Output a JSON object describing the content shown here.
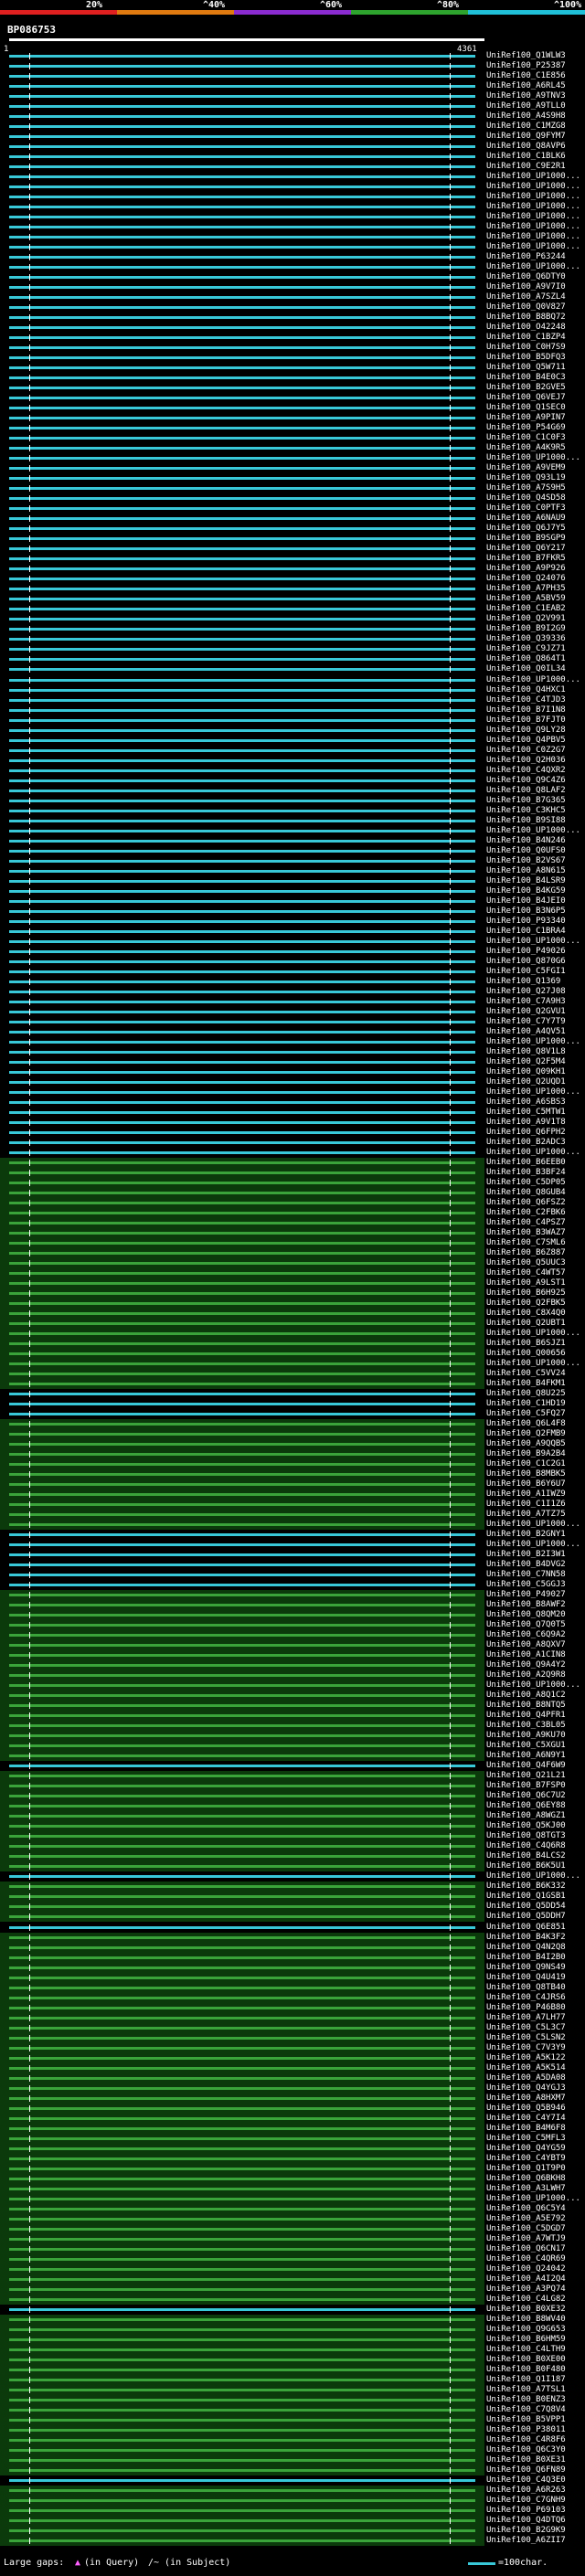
{
  "header": {
    "scale_labels": [
      "20%",
      "^40%",
      "^60%",
      "^80%",
      "^100%"
    ],
    "scale_colors": [
      "#e02020",
      "#e07a10",
      "#8a2bd0",
      "#2ea32e",
      "#20c0d8"
    ],
    "query_title": "BP086753",
    "ruler_start": "1",
    "ruler_end": "4361"
  },
  "footer": {
    "gaps_label": "Large gaps: ",
    "in_query": "(in Query)",
    "in_subject": "/~ (in Subject)",
    "legend_text": "=100char."
  },
  "colors": {
    "cyan": "#38c8d8",
    "green": "#3aa43a",
    "dark_green": "#0b3a0b",
    "magenta": "#d040c0",
    "white": "#ffffff"
  },
  "hits": [
    {
      "label": "UniRef100_Q1WLW3",
      "color": "cyan"
    },
    {
      "label": "UniRef100_P25387",
      "color": "cyan"
    },
    {
      "label": "UniRef100_C1E856",
      "color": "cyan"
    },
    {
      "label": "UniRef100_A6RL45",
      "color": "cyan"
    },
    {
      "label": "UniRef100_A9TNV3",
      "color": "cyan"
    },
    {
      "label": "UniRef100_A9TLL0",
      "color": "cyan"
    },
    {
      "label": "UniRef100_A4S9H8",
      "color": "cyan"
    },
    {
      "label": "UniRef100_C1MZG8",
      "color": "cyan"
    },
    {
      "label": "UniRef100_Q9FYM7",
      "color": "cyan"
    },
    {
      "label": "UniRef100_Q8AVP6",
      "color": "cyan"
    },
    {
      "label": "UniRef100_C1BLK6",
      "color": "cyan"
    },
    {
      "label": "UniRef100_C9E2R1",
      "color": "cyan"
    },
    {
      "label": "UniRef100_UP1000...",
      "color": "cyan"
    },
    {
      "label": "UniRef100_UP1000...",
      "color": "cyan"
    },
    {
      "label": "UniRef100_UP1000...",
      "color": "cyan"
    },
    {
      "label": "UniRef100_UP1000...",
      "color": "cyan"
    },
    {
      "label": "UniRef100_UP1000...",
      "color": "cyan"
    },
    {
      "label": "UniRef100_UP1000...",
      "color": "cyan"
    },
    {
      "label": "UniRef100_UP1000...",
      "color": "cyan"
    },
    {
      "label": "UniRef100_UP1000...",
      "color": "cyan"
    },
    {
      "label": "UniRef100_P63244",
      "color": "cyan"
    },
    {
      "label": "UniRef100_UP1000...",
      "color": "cyan"
    },
    {
      "label": "UniRef100_Q6DTY0",
      "color": "cyan"
    },
    {
      "label": "UniRef100_A9V7I0",
      "color": "cyan"
    },
    {
      "label": "UniRef100_A7SZL4",
      "color": "cyan"
    },
    {
      "label": "UniRef100_Q0V827",
      "color": "cyan"
    },
    {
      "label": "UniRef100_B8BQ72",
      "color": "cyan"
    },
    {
      "label": "UniRef100_O42248",
      "color": "cyan"
    },
    {
      "label": "UniRef100_C1BZP4",
      "color": "cyan"
    },
    {
      "label": "UniRef100_C0H7S9",
      "color": "cyan"
    },
    {
      "label": "UniRef100_B5DFQ3",
      "color": "cyan"
    },
    {
      "label": "UniRef100_Q5W711",
      "color": "cyan"
    },
    {
      "label": "UniRef100_B4E0C3",
      "color": "cyan"
    },
    {
      "label": "UniRef100_B2GVE5",
      "color": "cyan"
    },
    {
      "label": "UniRef100_Q6VEJ7",
      "color": "cyan"
    },
    {
      "label": "UniRef100_Q1SEC0",
      "color": "cyan"
    },
    {
      "label": "UniRef100_A9PIN7",
      "color": "cyan"
    },
    {
      "label": "UniRef100_P54G69",
      "color": "cyan"
    },
    {
      "label": "UniRef100_C1C0F3",
      "color": "cyan"
    },
    {
      "label": "UniRef100_A4K9R5",
      "color": "cyan"
    },
    {
      "label": "UniRef100_UP1000...",
      "color": "cyan"
    },
    {
      "label": "UniRef100_A9VEM9",
      "color": "cyan"
    },
    {
      "label": "UniRef100_Q93L19",
      "color": "cyan"
    },
    {
      "label": "UniRef100_A7S9H5",
      "color": "cyan"
    },
    {
      "label": "UniRef100_Q4SD58",
      "color": "cyan"
    },
    {
      "label": "UniRef100_C0PTF3",
      "color": "cyan"
    },
    {
      "label": "UniRef100_A6NAU9",
      "color": "cyan"
    },
    {
      "label": "UniRef100_Q6J7Y5",
      "color": "cyan"
    },
    {
      "label": "UniRef100_B9SGP9",
      "color": "cyan"
    },
    {
      "label": "UniRef100_Q6Y217",
      "color": "cyan"
    },
    {
      "label": "UniRef100_B7FKR5",
      "color": "cyan"
    },
    {
      "label": "UniRef100_A9P926",
      "color": "cyan"
    },
    {
      "label": "UniRef100_Q24076",
      "color": "cyan"
    },
    {
      "label": "UniRef100_A7PH35",
      "color": "cyan"
    },
    {
      "label": "UniRef100_A5BV59",
      "color": "cyan"
    },
    {
      "label": "UniRef100_C1EAB2",
      "color": "cyan"
    },
    {
      "label": "UniRef100_Q2V991",
      "color": "cyan"
    },
    {
      "label": "UniRef100_B9I2G9",
      "color": "cyan"
    },
    {
      "label": "UniRef100_Q39336",
      "color": "cyan"
    },
    {
      "label": "UniRef100_C9JZ71",
      "color": "cyan"
    },
    {
      "label": "UniRef100_Q864T1",
      "color": "cyan"
    },
    {
      "label": "UniRef100_Q0IL34",
      "color": "cyan"
    },
    {
      "label": "UniRef100_UP1000...",
      "color": "cyan"
    },
    {
      "label": "UniRef100_Q4HXC1",
      "color": "cyan"
    },
    {
      "label": "UniRef100_C4TJD3",
      "color": "cyan"
    },
    {
      "label": "UniRef100_B7I1N8",
      "color": "cyan"
    },
    {
      "label": "UniRef100_B7FJT0",
      "color": "cyan"
    },
    {
      "label": "UniRef100_Q9LY28",
      "color": "cyan"
    },
    {
      "label": "UniRef100_Q4PBV5",
      "color": "cyan"
    },
    {
      "label": "UniRef100_C0Z2G7",
      "color": "cyan"
    },
    {
      "label": "UniRef100_Q2H036",
      "color": "cyan"
    },
    {
      "label": "UniRef100_C4QXR2",
      "color": "cyan"
    },
    {
      "label": "UniRef100_Q9C4Z6",
      "color": "cyan"
    },
    {
      "label": "UniRef100_Q8LAF2",
      "color": "cyan"
    },
    {
      "label": "UniRef100_B7G365",
      "color": "cyan"
    },
    {
      "label": "UniRef100_C3KHC5",
      "color": "cyan"
    },
    {
      "label": "UniRef100_B9SI88",
      "color": "cyan"
    },
    {
      "label": "UniRef100_UP1000...",
      "color": "cyan"
    },
    {
      "label": "UniRef100_B4N246",
      "color": "cyan"
    },
    {
      "label": "UniRef100_Q0UFS0",
      "color": "cyan"
    },
    {
      "label": "UniRef100_B2VS67",
      "color": "cyan"
    },
    {
      "label": "UniRef100_A8N615",
      "color": "cyan"
    },
    {
      "label": "UniRef100_B4LSR9",
      "color": "cyan"
    },
    {
      "label": "UniRef100_B4KG59",
      "color": "cyan"
    },
    {
      "label": "UniRef100_B4JEI0",
      "color": "cyan"
    },
    {
      "label": "UniRef100_B3N6P5",
      "color": "cyan"
    },
    {
      "label": "UniRef100_P93340",
      "color": "cyan"
    },
    {
      "label": "UniRef100_C1BRA4",
      "color": "cyan"
    },
    {
      "label": "UniRef100_UP1000...",
      "color": "cyan"
    },
    {
      "label": "UniRef100_P49026",
      "color": "cyan"
    },
    {
      "label": "UniRef100_Q870G6",
      "color": "cyan"
    },
    {
      "label": "UniRef100_C5FGI1",
      "color": "cyan"
    },
    {
      "label": "UniRef100_Q1369",
      "color": "cyan"
    },
    {
      "label": "UniRef100_Q27J08",
      "color": "cyan"
    },
    {
      "label": "UniRef100_C7A9H3",
      "color": "cyan"
    },
    {
      "label": "UniRef100_Q2GVU1",
      "color": "cyan"
    },
    {
      "label": "UniRef100_C7Y7T9",
      "color": "cyan"
    },
    {
      "label": "UniRef100_A4QV51",
      "color": "cyan"
    },
    {
      "label": "UniRef100_UP1000...",
      "color": "cyan"
    },
    {
      "label": "UniRef100_Q8V1L8",
      "color": "cyan"
    },
    {
      "label": "UniRef100_Q2F5M4",
      "color": "cyan"
    },
    {
      "label": "UniRef100_Q09KH1",
      "color": "cyan"
    },
    {
      "label": "UniRef100_Q2UQD1",
      "color": "cyan"
    },
    {
      "label": "UniRef100_UP1000...",
      "color": "cyan"
    },
    {
      "label": "UniRef100_A6SBS3",
      "color": "cyan"
    },
    {
      "label": "UniRef100_C5MTW1",
      "color": "cyan"
    },
    {
      "label": "UniRef100_A9V1T8",
      "color": "cyan"
    },
    {
      "label": "UniRef100_Q6FPH2",
      "color": "cyan"
    },
    {
      "label": "UniRef100_B2ADC3",
      "color": "cyan"
    },
    {
      "label": "UniRef100_UP1000...",
      "color": "cyan"
    },
    {
      "label": "UniRef100_B6EEB0",
      "color": "green"
    },
    {
      "label": "UniRef100_B3BF24",
      "color": "green"
    },
    {
      "label": "UniRef100_C5DP05",
      "color": "green"
    },
    {
      "label": "UniRef100_Q8GUB4",
      "color": "green"
    },
    {
      "label": "UniRef100_Q6FSZ2",
      "color": "green"
    },
    {
      "label": "UniRef100_C2FBK6",
      "color": "green"
    },
    {
      "label": "UniRef100_C4PSZ7",
      "color": "green"
    },
    {
      "label": "UniRef100_B3WAZ7",
      "color": "green"
    },
    {
      "label": "UniRef100_C7SML6",
      "color": "green"
    },
    {
      "label": "UniRef100_B6Z887",
      "color": "green"
    },
    {
      "label": "UniRef100_Q5UUC3",
      "color": "green"
    },
    {
      "label": "UniRef100_C4WT57",
      "color": "green"
    },
    {
      "label": "UniRef100_A9LST1",
      "color": "green"
    },
    {
      "label": "UniRef100_B6H925",
      "color": "green"
    },
    {
      "label": "UniRef100_Q2FBK5",
      "color": "green"
    },
    {
      "label": "UniRef100_C8X4Q0",
      "color": "green"
    },
    {
      "label": "UniRef100_Q2UBT1",
      "color": "green"
    },
    {
      "label": "UniRef100_UP1000...",
      "color": "green"
    },
    {
      "label": "UniRef100_B6SJZ1",
      "color": "green"
    },
    {
      "label": "UniRef100_Q00656",
      "color": "green"
    },
    {
      "label": "UniRef100_UP1000...",
      "color": "green"
    },
    {
      "label": "UniRef100_C5VV24",
      "color": "green"
    },
    {
      "label": "UniRef100_B4FKM1",
      "color": "green"
    },
    {
      "label": "UniRef100_Q8U225",
      "color": "cyan"
    },
    {
      "label": "UniRef100_C1HD19",
      "color": "cyan"
    },
    {
      "label": "UniRef100_C5FQ27",
      "color": "cyan"
    },
    {
      "label": "UniRef100_Q6L4F8",
      "color": "green"
    },
    {
      "label": "UniRef100_Q2FMB9",
      "color": "green"
    },
    {
      "label": "UniRef100_A9QQB5",
      "color": "green"
    },
    {
      "label": "UniRef100_B9A2B4",
      "color": "green"
    },
    {
      "label": "UniRef100_C1C2G1",
      "color": "green"
    },
    {
      "label": "UniRef100_B8MBK5",
      "color": "green"
    },
    {
      "label": "UniRef100_B6Y6U7",
      "color": "green"
    },
    {
      "label": "UniRef100_A1IWZ9",
      "color": "green"
    },
    {
      "label": "UniRef100_C1I1Z6",
      "color": "green"
    },
    {
      "label": "UniRef100_A7TZ75",
      "color": "green"
    },
    {
      "label": "UniRef100_UP1000...",
      "color": "green"
    },
    {
      "label": "UniRef100_B2GNY1",
      "color": "cyan"
    },
    {
      "label": "UniRef100_UP1000...",
      "color": "cyan"
    },
    {
      "label": "UniRef100_B2I3W1",
      "color": "cyan"
    },
    {
      "label": "UniRef100_B4DVG2",
      "color": "cyan"
    },
    {
      "label": "UniRef100_C7NN58",
      "color": "cyan"
    },
    {
      "label": "UniRef100_C5GGJ3",
      "color": "cyan"
    },
    {
      "label": "UniRef100_P49027",
      "color": "green"
    },
    {
      "label": "UniRef100_B8AWF2",
      "color": "green"
    },
    {
      "label": "UniRef100_Q8QM20",
      "color": "green"
    },
    {
      "label": "UniRef100_Q7Q0T5",
      "color": "green"
    },
    {
      "label": "UniRef100_C6Q9A2",
      "color": "green"
    },
    {
      "label": "UniRef100_A8QXV7",
      "color": "green"
    },
    {
      "label": "UniRef100_A1CIN8",
      "color": "green"
    },
    {
      "label": "UniRef100_Q9A4Y2",
      "color": "green"
    },
    {
      "label": "UniRef100_A2Q9R8",
      "color": "green"
    },
    {
      "label": "UniRef100_UP1000...",
      "color": "green"
    },
    {
      "label": "UniRef100_A8Q1C2",
      "color": "green"
    },
    {
      "label": "UniRef100_B8NTQ5",
      "color": "green"
    },
    {
      "label": "UniRef100_Q4PFR1",
      "color": "green"
    },
    {
      "label": "UniRef100_C3BL05",
      "color": "green"
    },
    {
      "label": "UniRef100_A9KU70",
      "color": "green"
    },
    {
      "label": "UniRef100_C5XGU1",
      "color": "green"
    },
    {
      "label": "UniRef100_A6N9Y1",
      "color": "green"
    },
    {
      "label": "UniRef100_Q4F6W9",
      "color": "cyan"
    },
    {
      "label": "UniRef100_Q21L21",
      "color": "green"
    },
    {
      "label": "UniRef100_B7FSP0",
      "color": "green"
    },
    {
      "label": "UniRef100_Q6C7U2",
      "color": "green"
    },
    {
      "label": "UniRef100_Q6EY88",
      "color": "green"
    },
    {
      "label": "UniRef100_A8WGZ1",
      "color": "green"
    },
    {
      "label": "UniRef100_Q5KJ00",
      "color": "green"
    },
    {
      "label": "UniRef100_Q8TGT3",
      "color": "green"
    },
    {
      "label": "UniRef100_C4Q6R8",
      "color": "green"
    },
    {
      "label": "UniRef100_B4LCS2",
      "color": "green"
    },
    {
      "label": "UniRef100_B6K5U1",
      "color": "green"
    },
    {
      "label": "UniRef100_UP1000...",
      "color": "cyan"
    },
    {
      "label": "UniRef100_B6K332",
      "color": "green"
    },
    {
      "label": "UniRef100_Q1GSB1",
      "color": "green"
    },
    {
      "label": "UniRef100_Q5DD54",
      "color": "green"
    },
    {
      "label": "UniRef100_Q5DDH7",
      "color": "green"
    },
    {
      "label": "UniRef100_Q6E851",
      "color": "cyan"
    },
    {
      "label": "UniRef100_B4K3F2",
      "color": "green"
    },
    {
      "label": "UniRef100_Q4N2Q8",
      "color": "green"
    },
    {
      "label": "UniRef100_B4I2B0",
      "color": "green"
    },
    {
      "label": "UniRef100_Q9NS49",
      "color": "green"
    },
    {
      "label": "UniRef100_Q4U419",
      "color": "green"
    },
    {
      "label": "UniRef100_Q8TB40",
      "color": "green"
    },
    {
      "label": "UniRef100_C4JRS6",
      "color": "green"
    },
    {
      "label": "UniRef100_P46B80",
      "color": "green"
    },
    {
      "label": "UniRef100_A7LH77",
      "color": "green"
    },
    {
      "label": "UniRef100_C5L3C7",
      "color": "green"
    },
    {
      "label": "UniRef100_C5LSN2",
      "color": "green"
    },
    {
      "label": "UniRef100_C7V3Y9",
      "color": "green"
    },
    {
      "label": "UniRef100_A5K122",
      "color": "green"
    },
    {
      "label": "UniRef100_A5K514",
      "color": "green"
    },
    {
      "label": "UniRef100_A5DA08",
      "color": "green"
    },
    {
      "label": "UniRef100_Q4YGJ3",
      "color": "green"
    },
    {
      "label": "UniRef100_A8HXM7",
      "color": "green"
    },
    {
      "label": "UniRef100_Q5B946",
      "color": "green"
    },
    {
      "label": "UniRef100_C4Y7I4",
      "color": "green"
    },
    {
      "label": "UniRef100_B4M6F8",
      "color": "green"
    },
    {
      "label": "UniRef100_C5MFL3",
      "color": "green"
    },
    {
      "label": "UniRef100_Q4YG59",
      "color": "green"
    },
    {
      "label": "UniRef100_C4YBT9",
      "color": "green"
    },
    {
      "label": "UniRef100_Q1T9P0",
      "color": "green"
    },
    {
      "label": "UniRef100_Q6BKH8",
      "color": "green"
    },
    {
      "label": "UniRef100_A3LWH7",
      "color": "green"
    },
    {
      "label": "UniRef100_UP1000...",
      "color": "green"
    },
    {
      "label": "UniRef100_Q6C5Y4",
      "color": "green"
    },
    {
      "label": "UniRef100_A5E792",
      "color": "green"
    },
    {
      "label": "UniRef100_C5DGD7",
      "color": "green"
    },
    {
      "label": "UniRef100_A7WTJ9",
      "color": "green"
    },
    {
      "label": "UniRef100_Q6CN17",
      "color": "green"
    },
    {
      "label": "UniRef100_C4QR69",
      "color": "green"
    },
    {
      "label": "UniRef100_Q24042",
      "color": "green"
    },
    {
      "label": "UniRef100_A4I2Q4",
      "color": "green"
    },
    {
      "label": "UniRef100_A3PQ74",
      "color": "green"
    },
    {
      "label": "UniRef100_C4LG82",
      "color": "green"
    },
    {
      "label": "UniRef100_B0XE32",
      "color": "cyan"
    },
    {
      "label": "UniRef100_B8WV40",
      "color": "green"
    },
    {
      "label": "UniRef100_Q9G653",
      "color": "green"
    },
    {
      "label": "UniRef100_B6HM59",
      "color": "green"
    },
    {
      "label": "UniRef100_C4LTH9",
      "color": "green"
    },
    {
      "label": "UniRef100_B0XE00",
      "color": "green"
    },
    {
      "label": "UniRef100_B0F480",
      "color": "green"
    },
    {
      "label": "UniRef100_Q1I187",
      "color": "green"
    },
    {
      "label": "UniRef100_A7TSL1",
      "color": "green"
    },
    {
      "label": "UniRef100_B0ENZ3",
      "color": "green"
    },
    {
      "label": "UniRef100_C7Q8V4",
      "color": "green"
    },
    {
      "label": "UniRef100_B5VPP1",
      "color": "green"
    },
    {
      "label": "UniRef100_P38011",
      "color": "green"
    },
    {
      "label": "UniRef100_C4R8F6",
      "color": "green"
    },
    {
      "label": "UniRef100_Q6C3Y0",
      "color": "green"
    },
    {
      "label": "UniRef100_B0XE31",
      "color": "green"
    },
    {
      "label": "UniRef100_Q6FN89",
      "color": "green"
    },
    {
      "label": "UniRef100_C4Q3E0",
      "color": "cyan"
    },
    {
      "label": "UniRef100_A6R263",
      "color": "green"
    },
    {
      "label": "UniRef100_C7GNH9",
      "color": "green"
    },
    {
      "label": "UniRef100_P69103",
      "color": "green"
    },
    {
      "label": "UniRef100_Q4DTQ6",
      "color": "green"
    },
    {
      "label": "UniRef100_B2G9K9",
      "color": "green"
    },
    {
      "label": "UniRef100_A6ZII7",
      "color": "green"
    }
  ]
}
